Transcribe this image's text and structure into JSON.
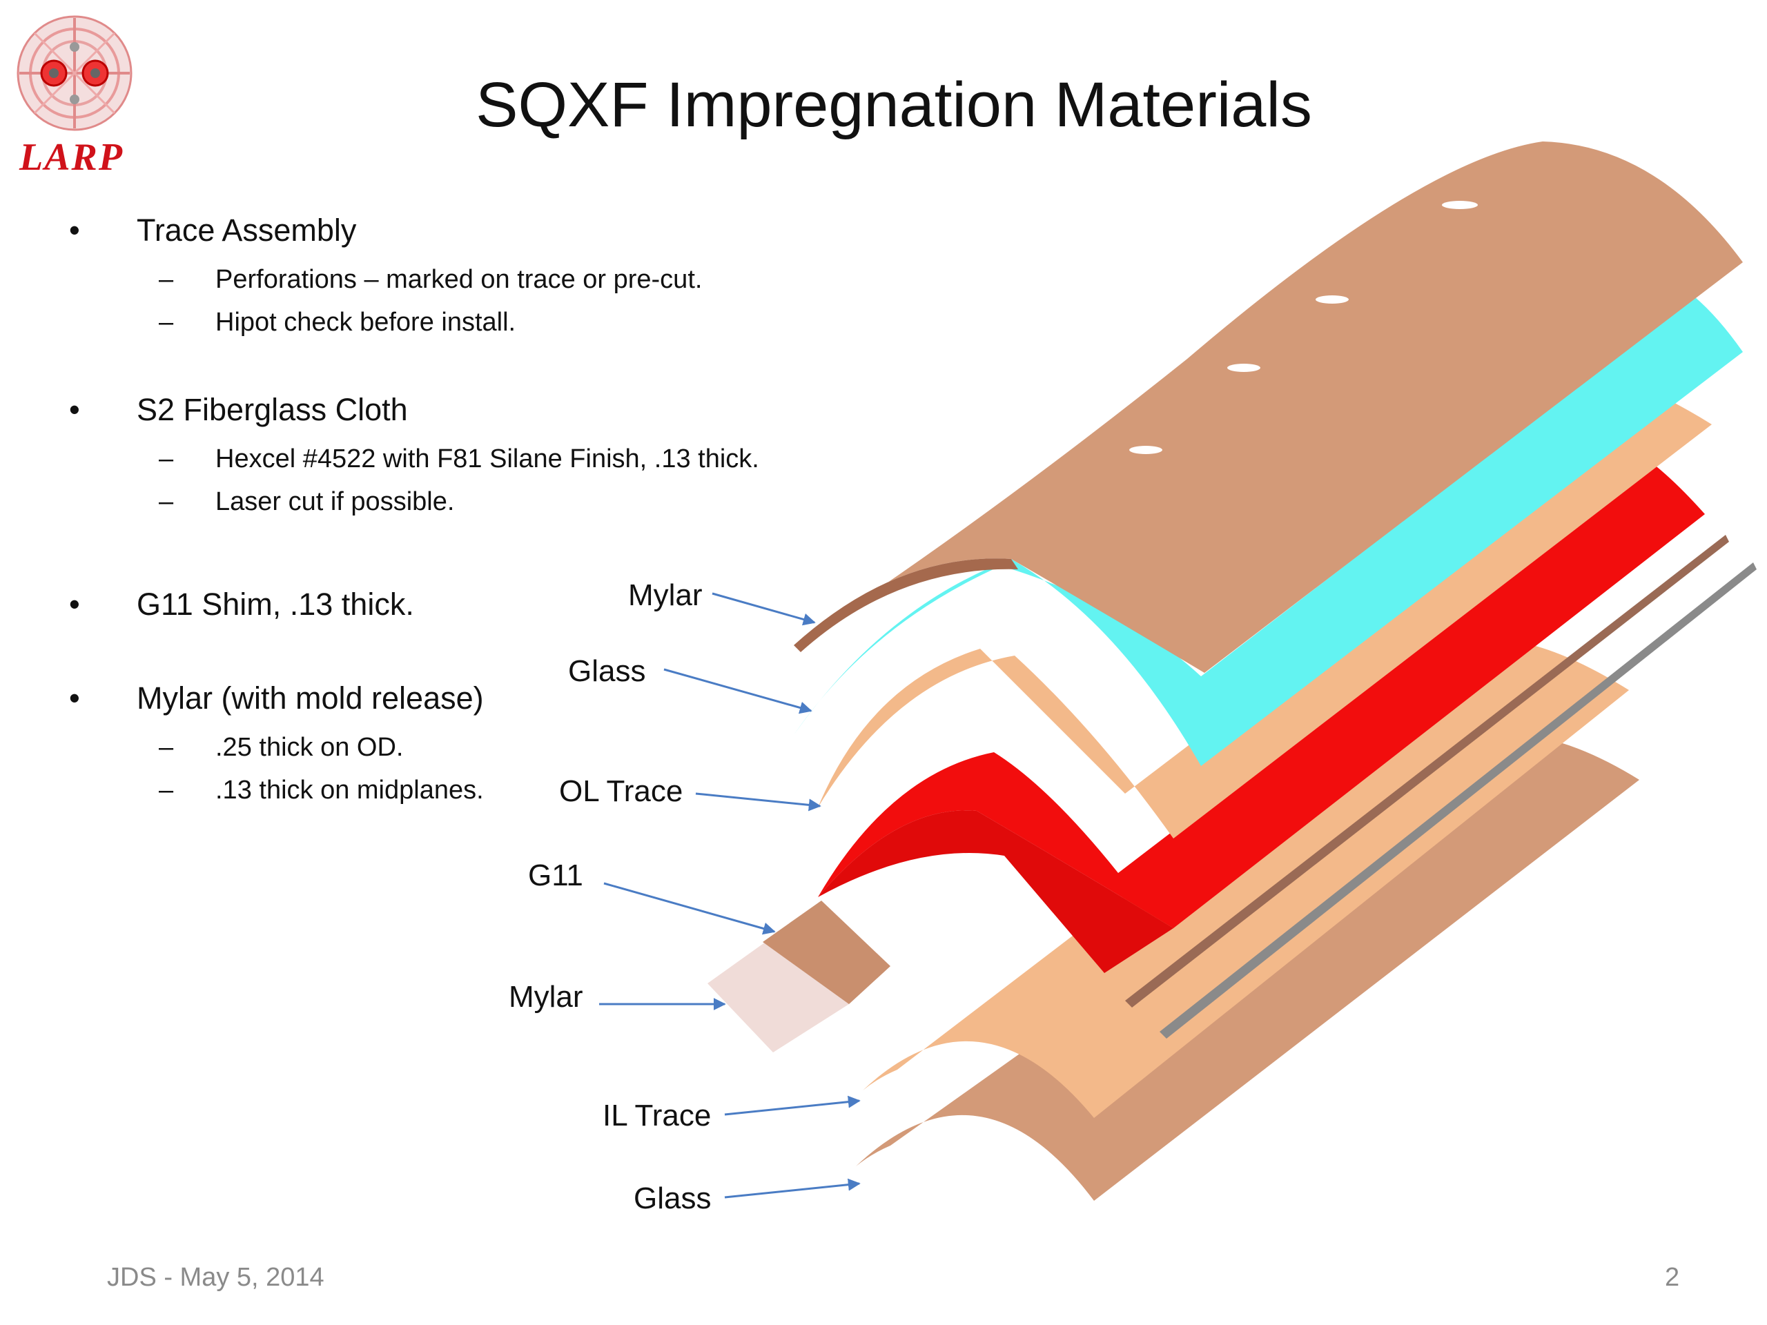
{
  "title": "SQXF Impregnation Materials",
  "logo": {
    "text": "LARP"
  },
  "bullets": [
    {
      "text": "Trace Assembly",
      "sub": [
        "Perforations – marked on trace or pre-cut.",
        "Hipot check before install."
      ]
    },
    {
      "text": "S2 Fiberglass Cloth",
      "sub": [
        "Hexcel #4522 with F81 Silane Finish, .13 thick.",
        "Laser cut if possible."
      ]
    },
    {
      "text": "G11 Shim, .13 thick.",
      "sub": []
    },
    {
      "text": "Mylar (with mold release)",
      "sub": [
        ".25 thick on OD.",
        ".13 thick on midplanes."
      ]
    }
  ],
  "bullet_symbol": "•",
  "dash_symbol": "–",
  "diagram_labels": [
    "Mylar",
    "Glass",
    "OL Trace",
    "G11",
    "Mylar",
    "IL Trace",
    "Glass"
  ],
  "colors": {
    "mylar_outer": "#d39a78",
    "glass": "#63f3f1",
    "trace": "#f3b98a",
    "g11": "#f20d0d",
    "mylar_inner": "#f0dcd8",
    "arrow": "#4a7cc4",
    "logo_red": "#d0121a"
  },
  "footer": {
    "left": "JDS - May 5, 2014",
    "right": "2"
  }
}
